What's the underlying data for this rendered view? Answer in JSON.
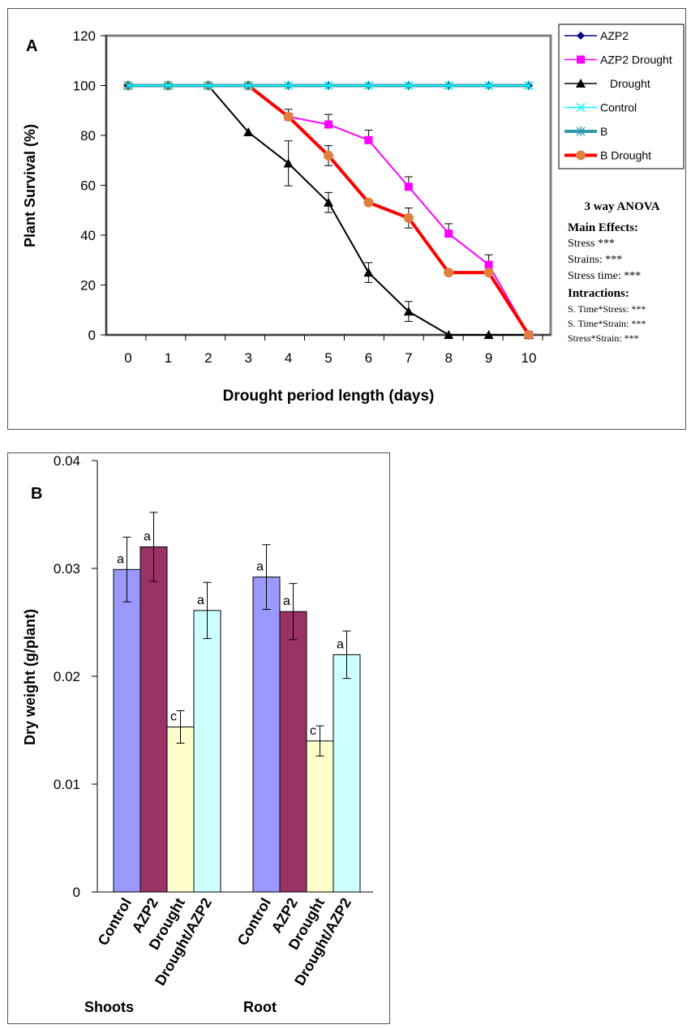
{
  "chart_data": [
    {
      "panel": "A",
      "type": "line",
      "xlabel": "Drought period length (days)",
      "ylabel": "Plant Survival (%)",
      "x": [
        0,
        1,
        2,
        3,
        4,
        5,
        6,
        7,
        8,
        9,
        10
      ],
      "ylim": [
        0,
        120
      ],
      "yticks": [
        0,
        20,
        40,
        60,
        80,
        100,
        120
      ],
      "grid": false,
      "legend_position": "top-right",
      "series": [
        {
          "name": "AZP2",
          "color": "#000080",
          "marker": "diamond",
          "values": [
            100,
            100,
            100,
            100,
            100,
            100,
            100,
            100,
            100,
            100,
            100
          ]
        },
        {
          "name": "AZP2 Drought",
          "color": "#ff00ff",
          "marker": "square",
          "values": [
            100,
            100,
            100,
            100,
            87.5,
            84.4,
            78.1,
            59.4,
            40.6,
            28.1,
            0
          ],
          "errors": [
            0,
            0,
            0,
            0,
            3,
            4,
            4,
            4,
            4,
            4,
            0
          ]
        },
        {
          "name": "Drought",
          "color": "#000000",
          "marker": "triangle",
          "values": [
            100,
            100,
            100,
            81.3,
            68.8,
            53.1,
            25,
            9.4,
            0,
            0,
            0
          ],
          "errors": [
            0,
            0,
            0,
            0,
            9,
            4,
            4,
            4,
            0,
            0,
            0
          ]
        },
        {
          "name": "Control",
          "color": "#00ffff",
          "marker": "x",
          "values": [
            100,
            100,
            100,
            100,
            100,
            100,
            100,
            100,
            100,
            100,
            100
          ]
        },
        {
          "name": "B",
          "color": "#3399aa",
          "marker": "star",
          "values": [
            100,
            100,
            100,
            100,
            100,
            100,
            100,
            100,
            100,
            100,
            100
          ]
        },
        {
          "name": "B Drought",
          "color": "#ff0000",
          "marker_color": "#e08040",
          "marker": "circle",
          "values": [
            100,
            100,
            100,
            100,
            87.5,
            71.9,
            53.1,
            46.9,
            25,
            25,
            0
          ],
          "errors": [
            0,
            0,
            0,
            0,
            0,
            4,
            0,
            4,
            0,
            0,
            0
          ]
        }
      ],
      "annotation": {
        "title": "3 way ANOVA",
        "main_effects_heading": "Main Effects:",
        "main_effects": [
          "Stress ***",
          "Strains: ***",
          "Stress time: ***"
        ],
        "interactions_heading": "Intractions:",
        "interactions": [
          "S. Time*Stress: ***",
          "S. Time*Strain: ***",
          "Stress*Strain: ***"
        ]
      }
    },
    {
      "panel": "B",
      "type": "bar",
      "ylabel": "Dry weight (g/plant)",
      "ylim": [
        0,
        0.04
      ],
      "yticks": [
        0,
        0.01,
        0.02,
        0.03,
        0.04
      ],
      "ytick_labels": [
        "0",
        "0.01",
        "0.02",
        "0.03",
        "0.04"
      ],
      "groups": [
        "Shoots",
        "Root"
      ],
      "categories": [
        "Control",
        "AZP2",
        "Drought",
        "Drought/AZP2"
      ],
      "category_colors": [
        "#9999ff",
        "#993366",
        "#ffffcc",
        "#ccffff"
      ],
      "values": [
        [
          0.0299,
          0.032,
          0.0153,
          0.0261
        ],
        [
          0.0292,
          0.026,
          0.014,
          0.022
        ]
      ],
      "errors": [
        [
          0.003,
          0.0032,
          0.0015,
          0.0026
        ],
        [
          0.003,
          0.0026,
          0.0014,
          0.0022
        ]
      ],
      "letters": [
        [
          "a",
          "a",
          "c",
          "a"
        ],
        [
          "a",
          "a",
          "c",
          "a"
        ]
      ]
    }
  ]
}
